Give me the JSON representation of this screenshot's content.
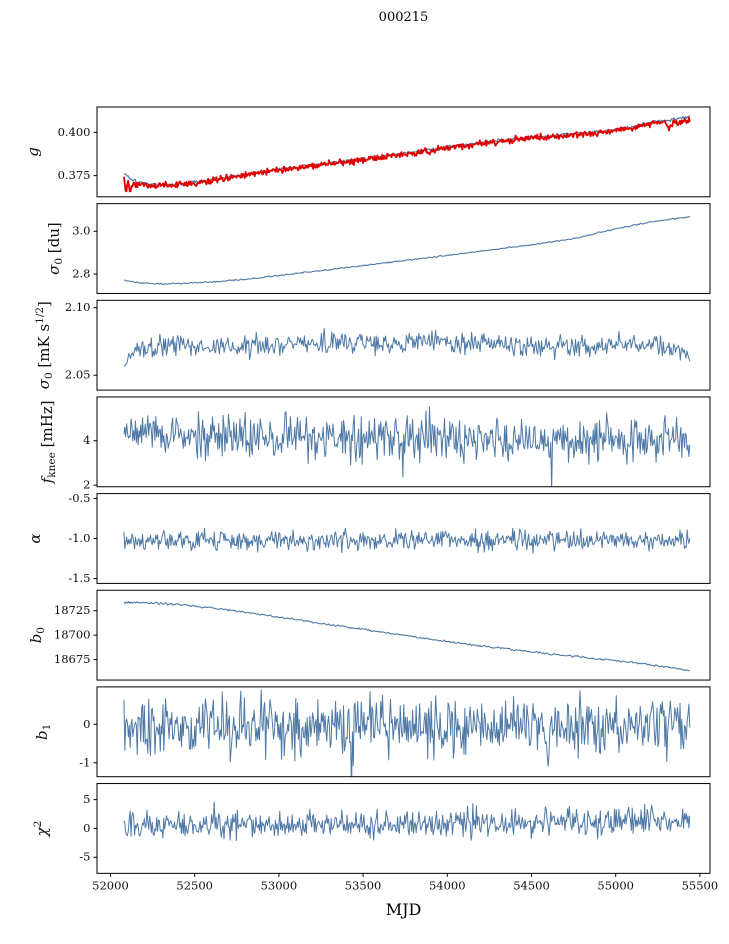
{
  "colors": {
    "frame": "#000000",
    "text": "#111111",
    "line": "#4e79a7",
    "overlay": "#e00000"
  },
  "chart_data": {
    "type": "line",
    "title": "000215",
    "grid": false,
    "legend": "none",
    "x_axis": {
      "label": "MJD",
      "lim": [
        51920,
        55560
      ],
      "ticks": [
        52000,
        52500,
        53000,
        53500,
        54000,
        54500,
        55000,
        55500
      ]
    },
    "data_xrange": [
      52080,
      55440
    ],
    "panels": [
      {
        "name": "g",
        "ylabel_parts": [
          {
            "t": "g",
            "i": 1
          }
        ],
        "ylabel_x": 33,
        "ylim": [
          0.3628,
          0.4146
        ],
        "yticks": [
          {
            "v": 0.4,
            "label": "0.400"
          },
          {
            "v": 0.375,
            "label": "0.375"
          }
        ],
        "series": [
          {
            "name": "g-smoothed",
            "color": "#4e79a7",
            "width": 1.2,
            "seed": 101,
            "n": 500,
            "noise": 0.0005,
            "trend": [
              [
                52080,
                0.3762
              ],
              [
                52150,
                0.3718
              ],
              [
                52250,
                0.3699
              ],
              [
                52360,
                0.3696
              ],
              [
                52500,
                0.3712
              ],
              [
                52700,
                0.3742
              ],
              [
                52900,
                0.3774
              ],
              [
                53100,
                0.3801
              ],
              [
                53300,
                0.3823
              ],
              [
                53500,
                0.3846
              ],
              [
                53700,
                0.3872
              ],
              [
                53900,
                0.3899
              ],
              [
                54100,
                0.3928
              ],
              [
                54300,
                0.3951
              ],
              [
                54500,
                0.3973
              ],
              [
                54700,
                0.3986
              ],
              [
                54900,
                0.4003
              ],
              [
                55000,
                0.4017
              ],
              [
                55100,
                0.4033
              ],
              [
                55200,
                0.4058
              ],
              [
                55300,
                0.4069
              ],
              [
                55440,
                0.409
              ]
            ]
          },
          {
            "name": "g-raw",
            "color": "#e00000",
            "width": 1.8,
            "seed": 202,
            "n": 680,
            "noise": 0.0009,
            "trend": [
              [
                52080,
                0.3747
              ],
              [
                52092,
                0.3652
              ],
              [
                52104,
                0.3724
              ],
              [
                52118,
                0.365
              ],
              [
                52132,
                0.3705
              ],
              [
                52150,
                0.3692
              ],
              [
                52250,
                0.3694
              ],
              [
                52360,
                0.3691
              ],
              [
                52500,
                0.3707
              ],
              [
                52700,
                0.3737
              ],
              [
                52900,
                0.3769
              ],
              [
                53100,
                0.3796
              ],
              [
                53300,
                0.3818
              ],
              [
                53500,
                0.3841
              ],
              [
                53700,
                0.3867
              ],
              [
                53900,
                0.3894
              ],
              [
                54100,
                0.3923
              ],
              [
                54300,
                0.3946
              ],
              [
                54500,
                0.3968
              ],
              [
                54700,
                0.3981
              ],
              [
                54900,
                0.3998
              ],
              [
                55000,
                0.4012
              ],
              [
                55100,
                0.4028
              ],
              [
                55200,
                0.4053
              ],
              [
                55290,
                0.4062
              ],
              [
                55320,
                0.4018
              ],
              [
                55345,
                0.4062
              ],
              [
                55370,
                0.4045
              ],
              [
                55400,
                0.4068
              ],
              [
                55440,
                0.4075
              ]
            ]
          }
        ]
      },
      {
        "name": "sigma0-du",
        "ylabel_parts": [
          {
            "t": "σ",
            "i": 1
          },
          {
            "t": "0",
            "s": "sub"
          },
          {
            "t": " [du]"
          }
        ],
        "ylabel_x": 54,
        "ylim": [
          2.709,
          3.129
        ],
        "yticks": [
          {
            "v": 3.0,
            "label": "3.0"
          },
          {
            "v": 2.8,
            "label": "2.8"
          }
        ],
        "series": [
          {
            "name": "sigma0-du",
            "color": "#4e79a7",
            "width": 1.1,
            "seed": 303,
            "n": 460,
            "noise": 0.0015,
            "trend": [
              [
                52080,
                2.771
              ],
              [
                52180,
                2.757
              ],
              [
                52300,
                2.7535
              ],
              [
                52450,
                2.756
              ],
              [
                52600,
                2.7625
              ],
              [
                52800,
                2.7755
              ],
              [
                53000,
                2.7925
              ],
              [
                53250,
                2.8155
              ],
              [
                53500,
                2.8395
              ],
              [
                53750,
                2.8635
              ],
              [
                54000,
                2.887
              ],
              [
                54250,
                2.9115
              ],
              [
                54500,
                2.9365
              ],
              [
                54750,
                2.965
              ],
              [
                55000,
                3.012
              ],
              [
                55200,
                3.042
              ],
              [
                55440,
                3.068
              ]
            ]
          }
        ]
      },
      {
        "name": "sigma0-mk",
        "ylabel_parts": [
          {
            "t": "σ",
            "i": 1
          },
          {
            "t": "0",
            "s": "sub"
          },
          {
            "t": " [mK s"
          },
          {
            "t": "1/2",
            "s": "sup"
          },
          {
            "t": "]"
          }
        ],
        "ylabel_x": 44,
        "ylim": [
          2.039,
          2.1055
        ],
        "yticks": [
          {
            "v": 2.1,
            "label": "2.10"
          },
          {
            "v": 2.05,
            "label": "2.05"
          }
        ],
        "series": [
          {
            "name": "sigma0-mk",
            "color": "#4e79a7",
            "width": 1.0,
            "seed": 404,
            "n": 600,
            "noise": 0.0038,
            "trend": [
              [
                52080,
                2.058
              ],
              [
                52140,
                2.0665
              ],
              [
                52220,
                2.0705
              ],
              [
                52400,
                2.0715
              ],
              [
                52700,
                2.07
              ],
              [
                53000,
                2.073
              ],
              [
                53300,
                2.0745
              ],
              [
                53600,
                2.073
              ],
              [
                53900,
                2.0745
              ],
              [
                54200,
                2.073
              ],
              [
                54500,
                2.0725
              ],
              [
                54800,
                2.0715
              ],
              [
                55100,
                2.073
              ],
              [
                55300,
                2.07
              ],
              [
                55440,
                2.0645
              ]
            ]
          }
        ]
      },
      {
        "name": "fknee",
        "ylabel_parts": [
          {
            "t": "f",
            "i": 1
          },
          {
            "t": "knee",
            "s": "sub"
          },
          {
            "t": " [mHz]"
          }
        ],
        "ylabel_x": 47,
        "ylim": [
          1.93,
          5.97
        ],
        "yticks": [
          {
            "v": 4,
            "label": "4"
          },
          {
            "v": 2,
            "label": "2"
          }
        ],
        "series": [
          {
            "name": "fknee",
            "color": "#4e79a7",
            "width": 1.0,
            "seed": 505,
            "n": 640,
            "noise": 0.48,
            "heavy": true,
            "trend": [
              [
                52080,
                4.35
              ],
              [
                52250,
                4.28
              ],
              [
                52600,
                4.15
              ],
              [
                53200,
                4.1
              ],
              [
                54000,
                4.1
              ],
              [
                54800,
                4.05
              ],
              [
                55200,
                4.0
              ],
              [
                55440,
                3.85
              ]
            ]
          }
        ]
      },
      {
        "name": "alpha",
        "ylabel_parts": [
          {
            "t": "α",
            "i": 1
          }
        ],
        "ylabel_x": 35,
        "ylim": [
          -1.56,
          -0.44
        ],
        "yticks": [
          {
            "v": -0.5,
            "label": "-0.5"
          },
          {
            "v": -1.0,
            "label": "-1.0"
          },
          {
            "v": -1.5,
            "label": "-1.5"
          }
        ],
        "series": [
          {
            "name": "alpha",
            "color": "#4e79a7",
            "width": 1.0,
            "seed": 606,
            "n": 640,
            "noise": 0.062,
            "trend": [
              [
                52080,
                -1.035
              ],
              [
                52600,
                -1.025
              ],
              [
                53500,
                -1.02
              ],
              [
                54500,
                -1.018
              ],
              [
                55440,
                -1.01
              ]
            ]
          }
        ]
      },
      {
        "name": "b0",
        "ylabel_parts": [
          {
            "t": "b",
            "i": 1
          },
          {
            "t": "0",
            "s": "sub"
          }
        ],
        "ylabel_x": 36,
        "ylim": [
          18654,
          18746
        ],
        "yticks": [
          {
            "v": 18725,
            "label": "18725"
          },
          {
            "v": 18700,
            "label": "18700"
          },
          {
            "v": 18675,
            "label": "18675"
          }
        ],
        "series": [
          {
            "name": "b0",
            "color": "#4e79a7",
            "width": 1.1,
            "seed": 707,
            "n": 480,
            "noise": 0.5,
            "trend": [
              [
                52080,
                18733.5
              ],
              [
                52250,
                18733
              ],
              [
                52400,
                18731.5
              ],
              [
                52600,
                18728
              ],
              [
                52800,
                18723.5
              ],
              [
                53000,
                18718.5
              ],
              [
                53200,
                18713.5
              ],
              [
                53400,
                18708.5
              ],
              [
                53600,
                18703.5
              ],
              [
                53800,
                18698.5
              ],
              [
                54000,
                18693.5
              ],
              [
                54200,
                18689
              ],
              [
                54400,
                18685
              ],
              [
                54600,
                18681
              ],
              [
                54800,
                18677.5
              ],
              [
                55000,
                18674
              ],
              [
                55150,
                18671
              ],
              [
                55300,
                18667.5
              ],
              [
                55440,
                18663.5
              ]
            ]
          }
        ]
      },
      {
        "name": "b1",
        "ylabel_parts": [
          {
            "t": "b",
            "i": 1
          },
          {
            "t": "1",
            "s": "sub"
          }
        ],
        "ylabel_x": 42,
        "ylim": [
          -1.36,
          0.97
        ],
        "yticks": [
          {
            "v": 0,
            "label": "0"
          },
          {
            "v": -1,
            "label": "-1"
          }
        ],
        "series": [
          {
            "name": "b1",
            "color": "#4e79a7",
            "width": 1.0,
            "seed": 808,
            "n": 640,
            "noise": 0.36,
            "heavy": true,
            "trend": [
              [
                52080,
                -0.05
              ],
              [
                53500,
                -0.03
              ],
              [
                55440,
                -0.02
              ]
            ]
          }
        ]
      },
      {
        "name": "chi2",
        "ylabel_parts": [
          {
            "t": "χ",
            "i": 1
          },
          {
            "t": "2",
            "s": "sup"
          }
        ],
        "ylabel_x": 42,
        "ylim": [
          -7.8,
          7.8
        ],
        "yticks": [
          {
            "v": 5,
            "label": "5"
          },
          {
            "v": 0,
            "label": "0"
          },
          {
            "v": -5,
            "label": "-5"
          }
        ],
        "series": [
          {
            "name": "chi2",
            "color": "#4e79a7",
            "width": 1.0,
            "seed": 909,
            "n": 640,
            "noise": 1.15,
            "heavy": true,
            "trend": [
              [
                52080,
                0.35
              ],
              [
                52600,
                0.55
              ],
              [
                53200,
                0.65
              ],
              [
                53800,
                0.85
              ],
              [
                54400,
                1.0
              ],
              [
                55000,
                1.2
              ],
              [
                55440,
                1.55
              ]
            ]
          }
        ]
      }
    ]
  }
}
